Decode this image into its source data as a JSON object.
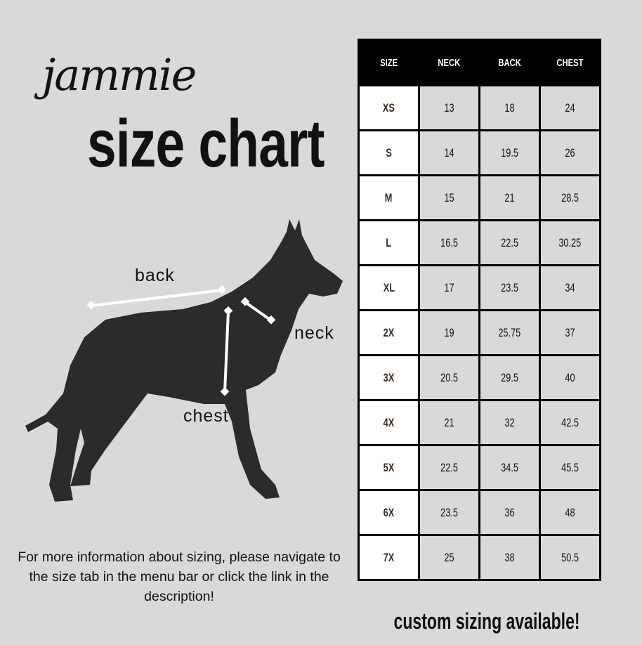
{
  "brand": "jammie",
  "title": "size chart",
  "labels": {
    "back": "back",
    "neck": "neck",
    "chest": "chest"
  },
  "info": "For more information about sizing, please navigate to the size tab in the menu bar or click the link in the description!",
  "footer": "custom sizing available!",
  "table": {
    "headers": [
      "SIZE",
      "NECK",
      "BACK",
      "CHEST"
    ],
    "rows": [
      [
        "XS",
        "13",
        "18",
        "24"
      ],
      [
        "S",
        "14",
        "19.5",
        "26"
      ],
      [
        "M",
        "15",
        "21",
        "28.5"
      ],
      [
        "L",
        "16.5",
        "22.5",
        "30.25"
      ],
      [
        "XL",
        "17",
        "23.5",
        "34"
      ],
      [
        "2X",
        "19",
        "25.75",
        "37"
      ],
      [
        "3X",
        "20.5",
        "29.5",
        "40"
      ],
      [
        "4X",
        "21",
        "32",
        "42.5"
      ],
      [
        "5X",
        "22.5",
        "34.5",
        "45.5"
      ],
      [
        "6X",
        "23.5",
        "36",
        "48"
      ],
      [
        "7X",
        "25",
        "38",
        "50.5"
      ]
    ]
  }
}
